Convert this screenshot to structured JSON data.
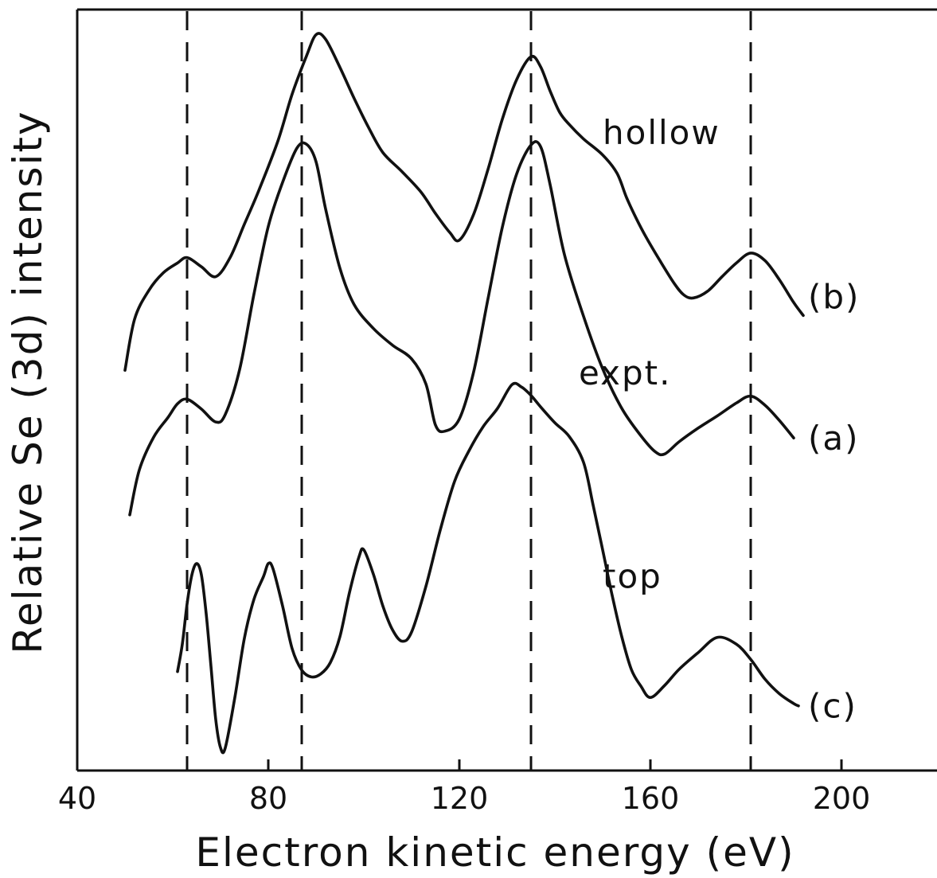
{
  "chart_data": {
    "type": "line",
    "title": "",
    "xlabel": "Electron kinetic energy (eV)",
    "ylabel": "Relative Se (3d) intensity",
    "xlim": [
      40,
      220
    ],
    "ylim": [
      0,
      1
    ],
    "x_ticks": [
      40,
      80,
      120,
      160,
      200
    ],
    "y_ticks": [],
    "grid": false,
    "reference_lines_x": [
      63,
      87,
      135,
      181
    ],
    "series": [
      {
        "name": "hollow",
        "tag": "(b)",
        "label_at": [
          150,
          0.839
        ],
        "tag_at": [
          193,
          0.623
        ],
        "x": [
          50,
          52,
          55,
          58,
          61,
          63,
          66,
          69,
          72,
          75,
          78,
          82,
          85,
          88,
          90,
          92,
          95,
          98,
          101,
          104,
          108,
          112,
          115,
          118,
          120,
          123,
          126,
          129,
          132,
          135,
          137,
          139,
          141,
          143,
          146,
          150,
          153,
          155,
          157,
          159,
          162,
          165,
          167,
          169,
          172,
          175,
          178,
          181,
          184,
          187,
          190,
          192
        ],
        "y": [
          0.526,
          0.593,
          0.631,
          0.654,
          0.667,
          0.674,
          0.662,
          0.649,
          0.674,
          0.718,
          0.762,
          0.827,
          0.889,
          0.939,
          0.967,
          0.961,
          0.924,
          0.883,
          0.845,
          0.812,
          0.787,
          0.76,
          0.732,
          0.707,
          0.697,
          0.731,
          0.79,
          0.856,
          0.908,
          0.938,
          0.925,
          0.893,
          0.865,
          0.849,
          0.83,
          0.809,
          0.785,
          0.753,
          0.726,
          0.702,
          0.67,
          0.64,
          0.625,
          0.621,
          0.63,
          0.649,
          0.667,
          0.68,
          0.67,
          0.645,
          0.615,
          0.598
        ]
      },
      {
        "name": "expt.",
        "tag": "(a)",
        "label_at": [
          145,
          0.523
        ],
        "tag_at": [
          193,
          0.437
        ],
        "x": [
          51,
          53,
          56,
          59,
          61,
          63,
          66,
          69,
          71,
          74,
          77,
          80,
          83,
          86,
          88,
          90,
          92,
          95,
          98,
          102,
          106,
          110,
          113,
          115,
          117,
          120,
          123,
          126,
          129,
          132,
          135,
          137,
          139,
          142,
          146,
          150,
          154,
          158,
          161,
          163,
          166,
          170,
          174,
          178,
          181,
          184,
          187,
          190
        ],
        "y": [
          0.336,
          0.395,
          0.438,
          0.464,
          0.482,
          0.488,
          0.475,
          0.458,
          0.468,
          0.527,
          0.626,
          0.715,
          0.773,
          0.818,
          0.823,
          0.8,
          0.738,
          0.66,
          0.612,
          0.581,
          0.559,
          0.541,
          0.508,
          0.454,
          0.446,
          0.462,
          0.524,
          0.62,
          0.714,
          0.784,
          0.822,
          0.82,
          0.77,
          0.678,
          0.597,
          0.528,
          0.476,
          0.44,
          0.419,
          0.416,
          0.432,
          0.45,
          0.466,
          0.483,
          0.492,
          0.48,
          0.46,
          0.437
        ]
      },
      {
        "name": "top",
        "tag": "(c)",
        "label_at": [
          150,
          0.256
        ],
        "tag_at": [
          193,
          0.085
        ],
        "x": [
          61,
          62,
          63,
          64,
          65,
          66,
          67,
          68,
          69,
          70,
          71,
          73,
          75,
          77,
          79,
          80,
          81,
          83,
          85,
          87,
          89,
          91,
          93,
          95,
          97,
          99,
          100,
          102,
          104,
          106,
          108,
          110,
          113,
          116,
          119,
          122,
          125,
          128,
          131,
          133,
          135,
          137,
          140,
          143,
          146,
          148,
          150,
          152,
          154,
          156,
          158,
          160,
          163,
          166,
          170,
          174,
          178,
          181,
          184,
          187,
          190,
          191
        ],
        "y": [
          0.13,
          0.166,
          0.219,
          0.257,
          0.272,
          0.257,
          0.206,
          0.137,
          0.067,
          0.03,
          0.03,
          0.096,
          0.174,
          0.225,
          0.255,
          0.272,
          0.265,
          0.216,
          0.16,
          0.132,
          0.123,
          0.127,
          0.142,
          0.176,
          0.234,
          0.281,
          0.29,
          0.258,
          0.216,
          0.185,
          0.17,
          0.182,
          0.242,
          0.316,
          0.38,
          0.42,
          0.452,
          0.476,
          0.507,
          0.504,
          0.493,
          0.478,
          0.457,
          0.439,
          0.405,
          0.349,
          0.29,
          0.23,
          0.176,
          0.133,
          0.111,
          0.096,
          0.112,
          0.133,
          0.155,
          0.175,
          0.166,
          0.146,
          0.12,
          0.101,
          0.088,
          0.085
        ]
      }
    ]
  }
}
